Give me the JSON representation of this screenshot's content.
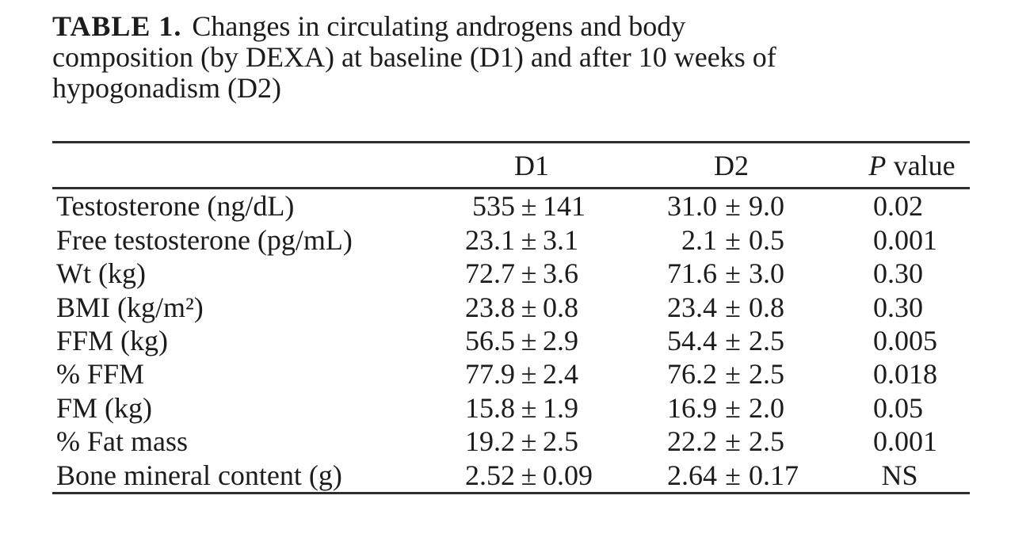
{
  "title": {
    "label": "TABLE 1.",
    "lines": [
      "Changes in circulating androgens and body",
      "composition (by DEXA) at baseline (D1) and after 10 weeks of",
      "hypogonadism (D2)"
    ]
  },
  "table": {
    "columns": {
      "d1": "D1",
      "d2": "D2",
      "p_symbol": "P",
      "p_rest": "value"
    },
    "pm": "±",
    "rows": [
      {
        "label": "Testosterone (ng/dL)",
        "d1_mean": "535",
        "d1_sd": "141",
        "d2_mean": "31.0",
        "d2_sd": "9.0",
        "p": "0.02"
      },
      {
        "label": "Free testosterone (pg/mL)",
        "d1_mean": "23.1",
        "d1_sd": "3.1",
        "d2_mean": "2.1",
        "d2_sd": "0.5",
        "p": "0.001"
      },
      {
        "label": "Wt (kg)",
        "d1_mean": "72.7",
        "d1_sd": "3.6",
        "d2_mean": "71.6",
        "d2_sd": "3.0",
        "p": "0.30"
      },
      {
        "label": "BMI (kg/m²)",
        "d1_mean": "23.8",
        "d1_sd": "0.8",
        "d2_mean": "23.4",
        "d2_sd": "0.8",
        "p": "0.30"
      },
      {
        "label": "FFM (kg)",
        "d1_mean": "56.5",
        "d1_sd": "2.9",
        "d2_mean": "54.4",
        "d2_sd": "2.5",
        "p": "0.005"
      },
      {
        "label": "% FFM",
        "d1_mean": "77.9",
        "d1_sd": "2.4",
        "d2_mean": "76.2",
        "d2_sd": "2.5",
        "p": "0.018"
      },
      {
        "label": "FM (kg)",
        "d1_mean": "15.8",
        "d1_sd": "1.9",
        "d2_mean": "16.9",
        "d2_sd": "2.0",
        "p": "0.05"
      },
      {
        "label": "% Fat mass",
        "d1_mean": "19.2",
        "d1_sd": "2.5",
        "d2_mean": "22.2",
        "d2_sd": "2.5",
        "p": "0.001"
      },
      {
        "label": "Bone mineral content (g)",
        "d1_mean": "2.52",
        "d1_sd": "0.09",
        "d2_mean": "2.64",
        "d2_sd": "0.17",
        "p": "NS"
      }
    ]
  }
}
